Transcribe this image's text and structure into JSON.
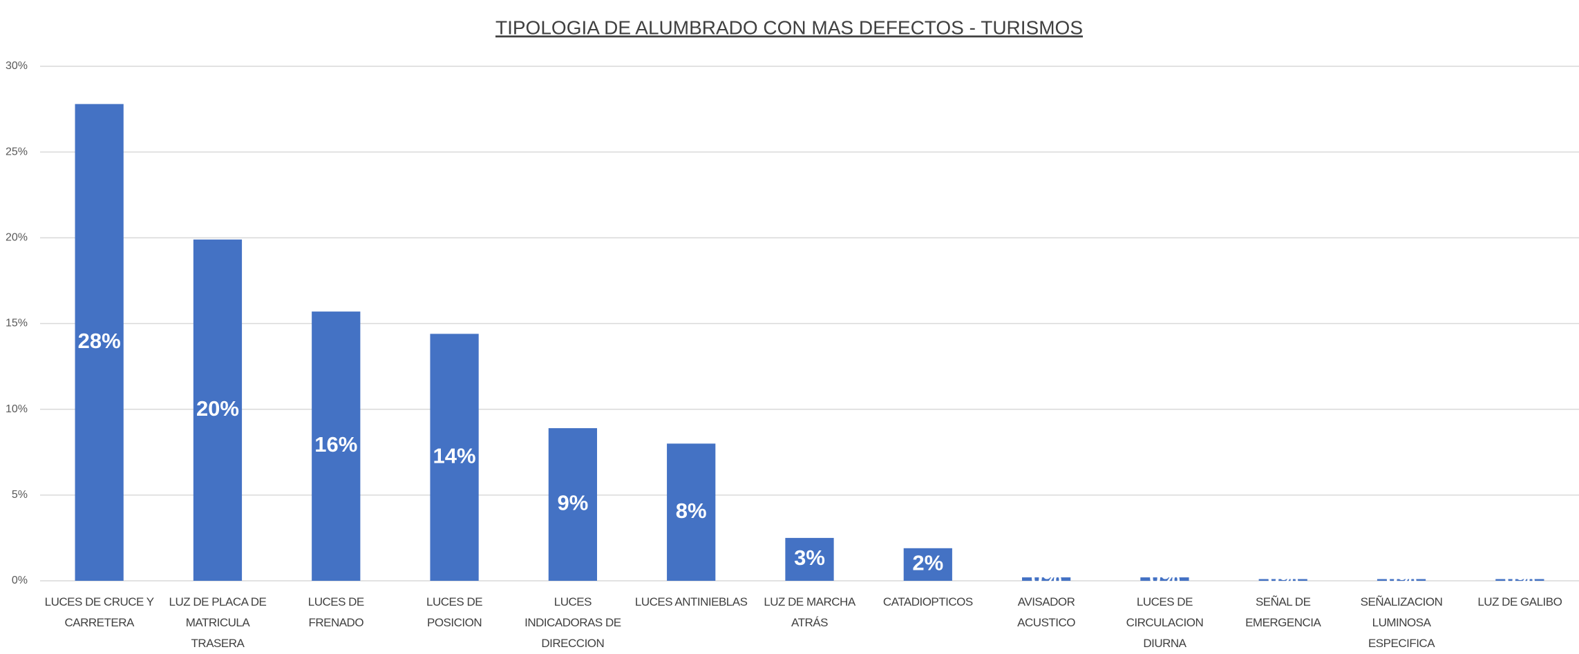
{
  "chart_data": {
    "type": "bar",
    "title": "TIPOLOGIA DE ALUMBRADO CON MAS DEFECTOS - TURISMOS",
    "categories": [
      "LUCES DE CRUCE Y CARRETERA",
      "LUZ DE PLACA DE MATRICULA TRASERA",
      "LUCES DE FRENADO",
      "LUCES DE POSICION",
      "LUCES INDICADORAS DE DIRECCION",
      "LUCES ANTINIEBLAS",
      "LUZ DE MARCHA ATRÁS",
      "CATADIOPTICOS",
      "AVISADOR ACUSTICO",
      "LUCES DE CIRCULACION DIURNA",
      "SEÑAL DE EMERGENCIA",
      "SEÑALIZACION LUMINOSA ESPECIFICA",
      "LUZ DE GALIBO"
    ],
    "values": [
      27.8,
      19.9,
      15.7,
      14.4,
      8.9,
      8.0,
      2.5,
      1.9,
      0.2,
      0.2,
      0.1,
      0.1,
      0.1
    ],
    "value_labels": [
      "28%",
      "20%",
      "16%",
      "14%",
      "9%",
      "8%",
      "3%",
      "2%",
      "0%",
      "0%",
      "0%",
      "0%",
      "0%"
    ],
    "color": "#4472c4",
    "ylim": [
      0,
      30
    ],
    "yticks": [
      {
        "value": 0,
        "label": "0%"
      },
      {
        "value": 5,
        "label": "5%"
      },
      {
        "value": 10,
        "label": "10%"
      },
      {
        "value": 15,
        "label": "15%"
      },
      {
        "value": 20,
        "label": "20%"
      },
      {
        "value": 25,
        "label": "25%"
      },
      {
        "value": 30,
        "label": "30%"
      }
    ],
    "grid": true
  }
}
